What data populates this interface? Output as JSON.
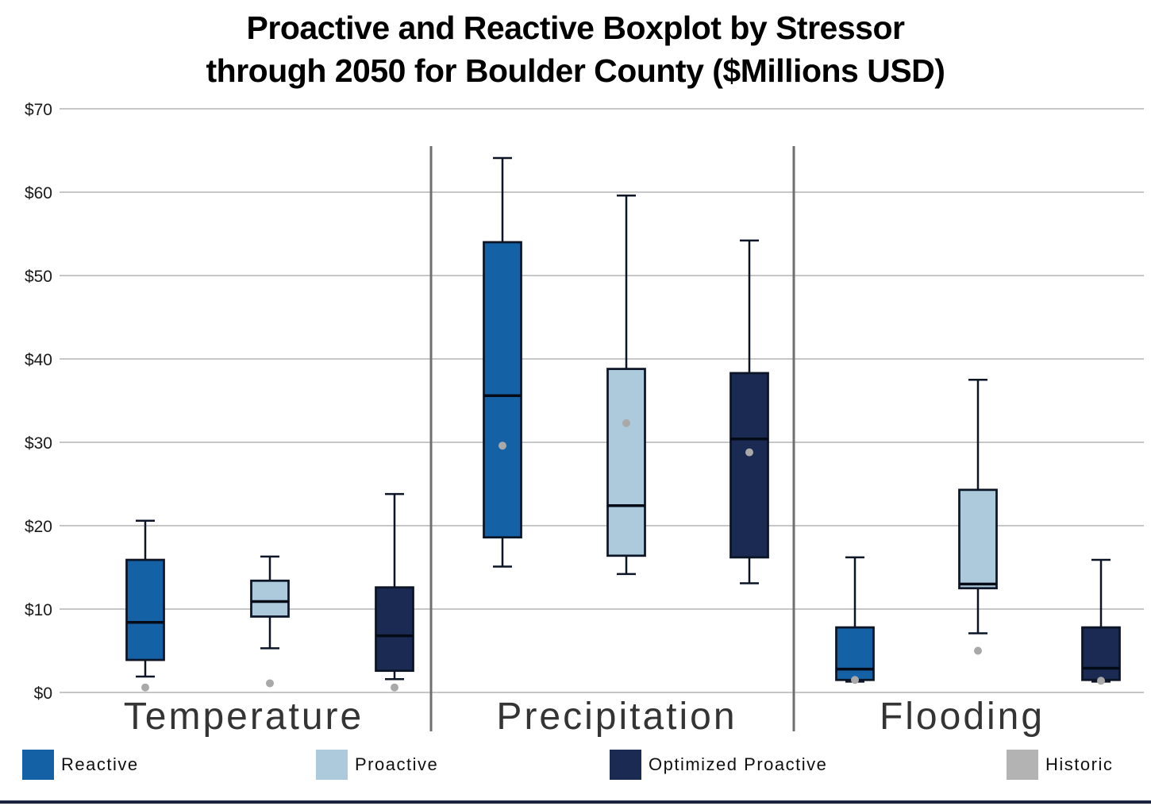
{
  "title": {
    "line1": "Proactive and Reactive Boxplot by Stressor",
    "line2": "through 2050 for Boulder County ($Millions USD)"
  },
  "chart_data": {
    "type": "boxplot",
    "title": "Proactive and Reactive Boxplot by Stressor through 2050 for Boulder County ($Millions USD)",
    "units": "$Millions USD",
    "ylim": [
      0,
      70
    ],
    "yticks": [
      0,
      10,
      20,
      30,
      40,
      50,
      60,
      70
    ],
    "ytick_labels": [
      "$0",
      "$10",
      "$20",
      "$30",
      "$40",
      "$50",
      "$60",
      "$70"
    ],
    "grid": true,
    "legend_position": "bottom",
    "categories": [
      "Temperature",
      "Precipitation",
      "Flooding"
    ],
    "series": [
      {
        "name": "Reactive",
        "color": "#1561a5",
        "boxes": [
          {
            "whisker_low": 1.9,
            "q1": 3.9,
            "median": 8.4,
            "q3": 15.9,
            "whisker_high": 20.6,
            "historic_point": 0.6
          },
          {
            "whisker_low": 15.1,
            "q1": 18.6,
            "median": 35.6,
            "q3": 54.0,
            "whisker_high": 64.1,
            "historic_point": 29.6
          },
          {
            "whisker_low": 1.3,
            "q1": 1.5,
            "median": 2.8,
            "q3": 7.8,
            "whisker_high": 16.2,
            "historic_point": 1.5
          }
        ]
      },
      {
        "name": "Proactive",
        "color": "#adc9dc",
        "boxes": [
          {
            "whisker_low": 5.3,
            "q1": 9.1,
            "median": 10.9,
            "q3": 13.4,
            "whisker_high": 16.3,
            "historic_point": 1.1
          },
          {
            "whisker_low": 14.2,
            "q1": 16.4,
            "median": 22.4,
            "q3": 38.8,
            "whisker_high": 59.6,
            "historic_point": 32.3
          },
          {
            "whisker_low": 7.1,
            "q1": 12.5,
            "median": 13.0,
            "q3": 24.3,
            "whisker_high": 37.5,
            "historic_point": 5.0
          }
        ]
      },
      {
        "name": "Optimized Proactive",
        "color": "#1a2a52",
        "boxes": [
          {
            "whisker_low": 1.6,
            "q1": 2.6,
            "median": 6.8,
            "q3": 12.6,
            "whisker_high": 23.8,
            "historic_point": 0.6
          },
          {
            "whisker_low": 13.1,
            "q1": 16.2,
            "median": 30.4,
            "q3": 38.3,
            "whisker_high": 54.2,
            "historic_point": 28.8
          },
          {
            "whisker_low": 1.3,
            "q1": 1.5,
            "median": 2.9,
            "q3": 7.8,
            "whisker_high": 15.9,
            "historic_point": 1.4
          }
        ]
      }
    ],
    "historic": {
      "name": "Historic",
      "color": "#a9a9a9",
      "marker": "dot"
    },
    "legend": [
      {
        "label": "Reactive",
        "color": "#1561a5"
      },
      {
        "label": "Proactive",
        "color": "#adc9dc"
      },
      {
        "label": "Optimized Proactive",
        "color": "#1a2a52"
      },
      {
        "label": "Historic",
        "color": "#b3b3b3"
      }
    ]
  }
}
